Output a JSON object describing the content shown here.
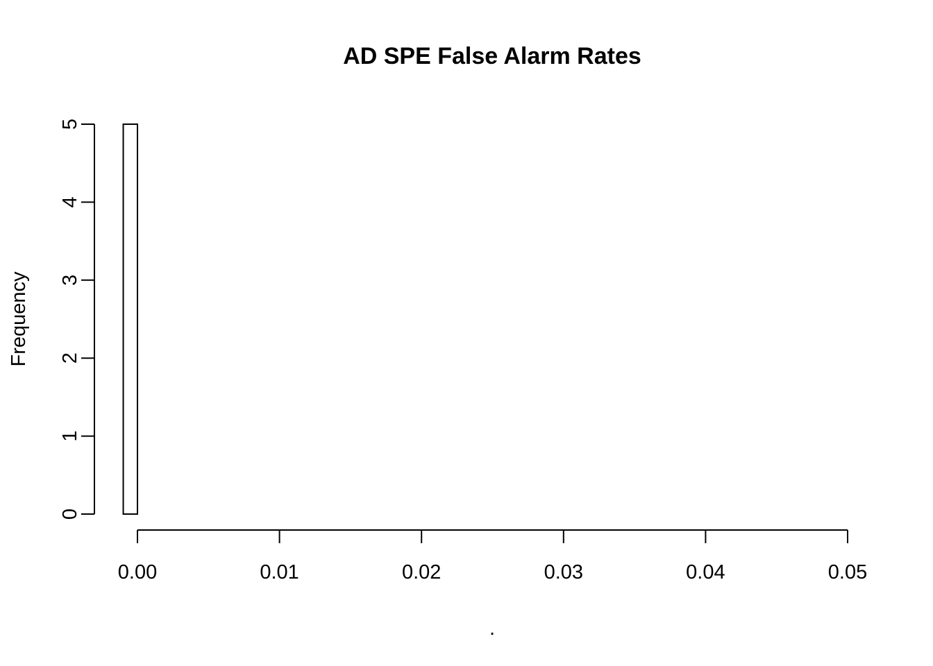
{
  "chart_data": {
    "type": "bar",
    "title": "AD SPE False Alarm Rates",
    "xlabel": ".",
    "ylabel": "Frequency",
    "xlim": [
      0,
      0.05
    ],
    "ylim": [
      0,
      5
    ],
    "x_ticks": [
      "0.00",
      "0.01",
      "0.02",
      "0.03",
      "0.04",
      "0.05"
    ],
    "y_ticks": [
      "0",
      "1",
      "2",
      "3",
      "4",
      "5"
    ],
    "bins": [
      {
        "start": -0.001,
        "end": 0.0,
        "count": 5
      }
    ],
    "bar_fill": "#ffffff",
    "bar_stroke": "#000000",
    "grid": false,
    "legend": "none"
  }
}
